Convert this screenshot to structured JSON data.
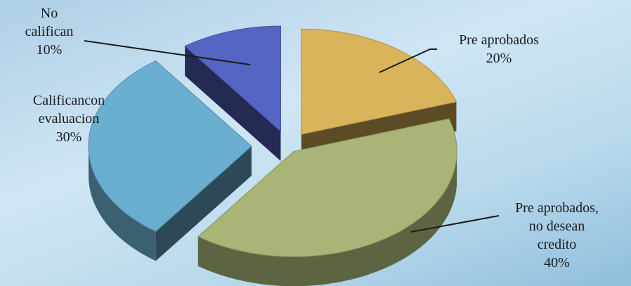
{
  "chart_data": {
    "type": "pie",
    "categories": [
      "Pre aprobados",
      "Pre aprobados, no desean credito",
      "Califican con evaluacion",
      "No califican"
    ],
    "values": [
      20,
      40,
      30,
      10
    ],
    "series": [
      {
        "values": [
          20,
          40,
          30,
          10
        ],
        "colors": [
          "#d9b45a",
          "#a9b577",
          "#6aaed0",
          "#5565c4"
        ]
      }
    ],
    "exploded": true,
    "style": "3d",
    "labels": [
      {
        "lines": [
          "Pre aprobados"
        ],
        "pct": "20%"
      },
      {
        "lines": [
          "Pre aprobados,",
          "no desean",
          "credito"
        ],
        "pct": "40%"
      },
      {
        "lines": [
          "Calificancon",
          "evaluacion"
        ],
        "pct": "30%"
      },
      {
        "lines": [
          "No",
          "califican"
        ],
        "pct": "10%"
      }
    ]
  }
}
